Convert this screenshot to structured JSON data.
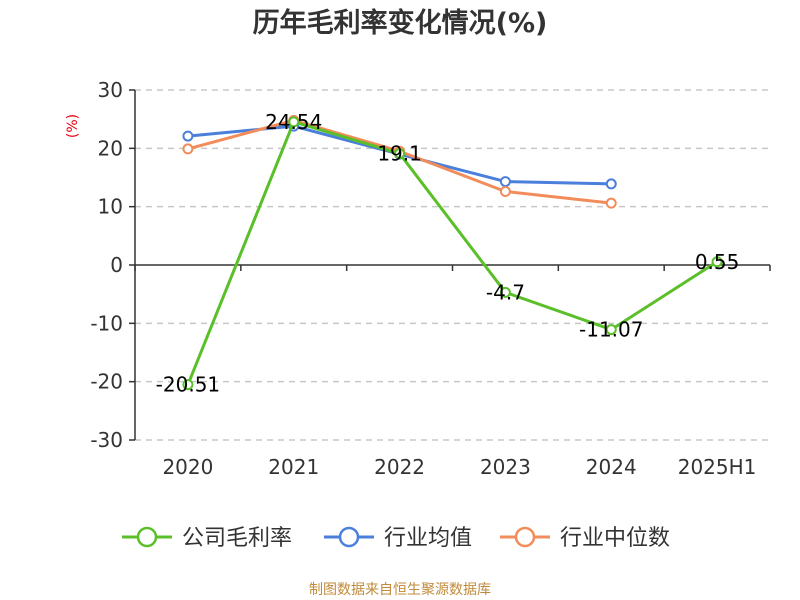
{
  "chart_data": {
    "type": "line",
    "title": "历年毛利率变化情况(%)",
    "ylabel": "(%)",
    "categories": [
      "2020",
      "2021",
      "2022",
      "2023",
      "2024",
      "2025H1"
    ],
    "yticks": [
      "30",
      "20",
      "10",
      "0",
      "-10",
      "-20",
      "-30"
    ],
    "ylim": [
      -30,
      30
    ],
    "grid": true,
    "legend_position": "bottom",
    "series": [
      {
        "name": "公司毛利率",
        "color": "#5bbf2a",
        "values": [
          -20.51,
          24.54,
          19.1,
          -4.7,
          -11.07,
          0.55
        ],
        "labels": [
          "-20.51",
          "24.54",
          "19.1",
          "-4.7",
          "-11.07",
          "0.55"
        ]
      },
      {
        "name": "行业均值",
        "color": "#4a7fdc",
        "values": [
          22.1,
          23.8,
          19.0,
          14.3,
          13.9,
          null
        ],
        "labels": []
      },
      {
        "name": "行业中位数",
        "color": "#f28c5a",
        "values": [
          19.9,
          24.8,
          19.5,
          12.6,
          10.6,
          null
        ],
        "labels": []
      }
    ]
  },
  "source": "制图数据来自恒生聚源数据库"
}
